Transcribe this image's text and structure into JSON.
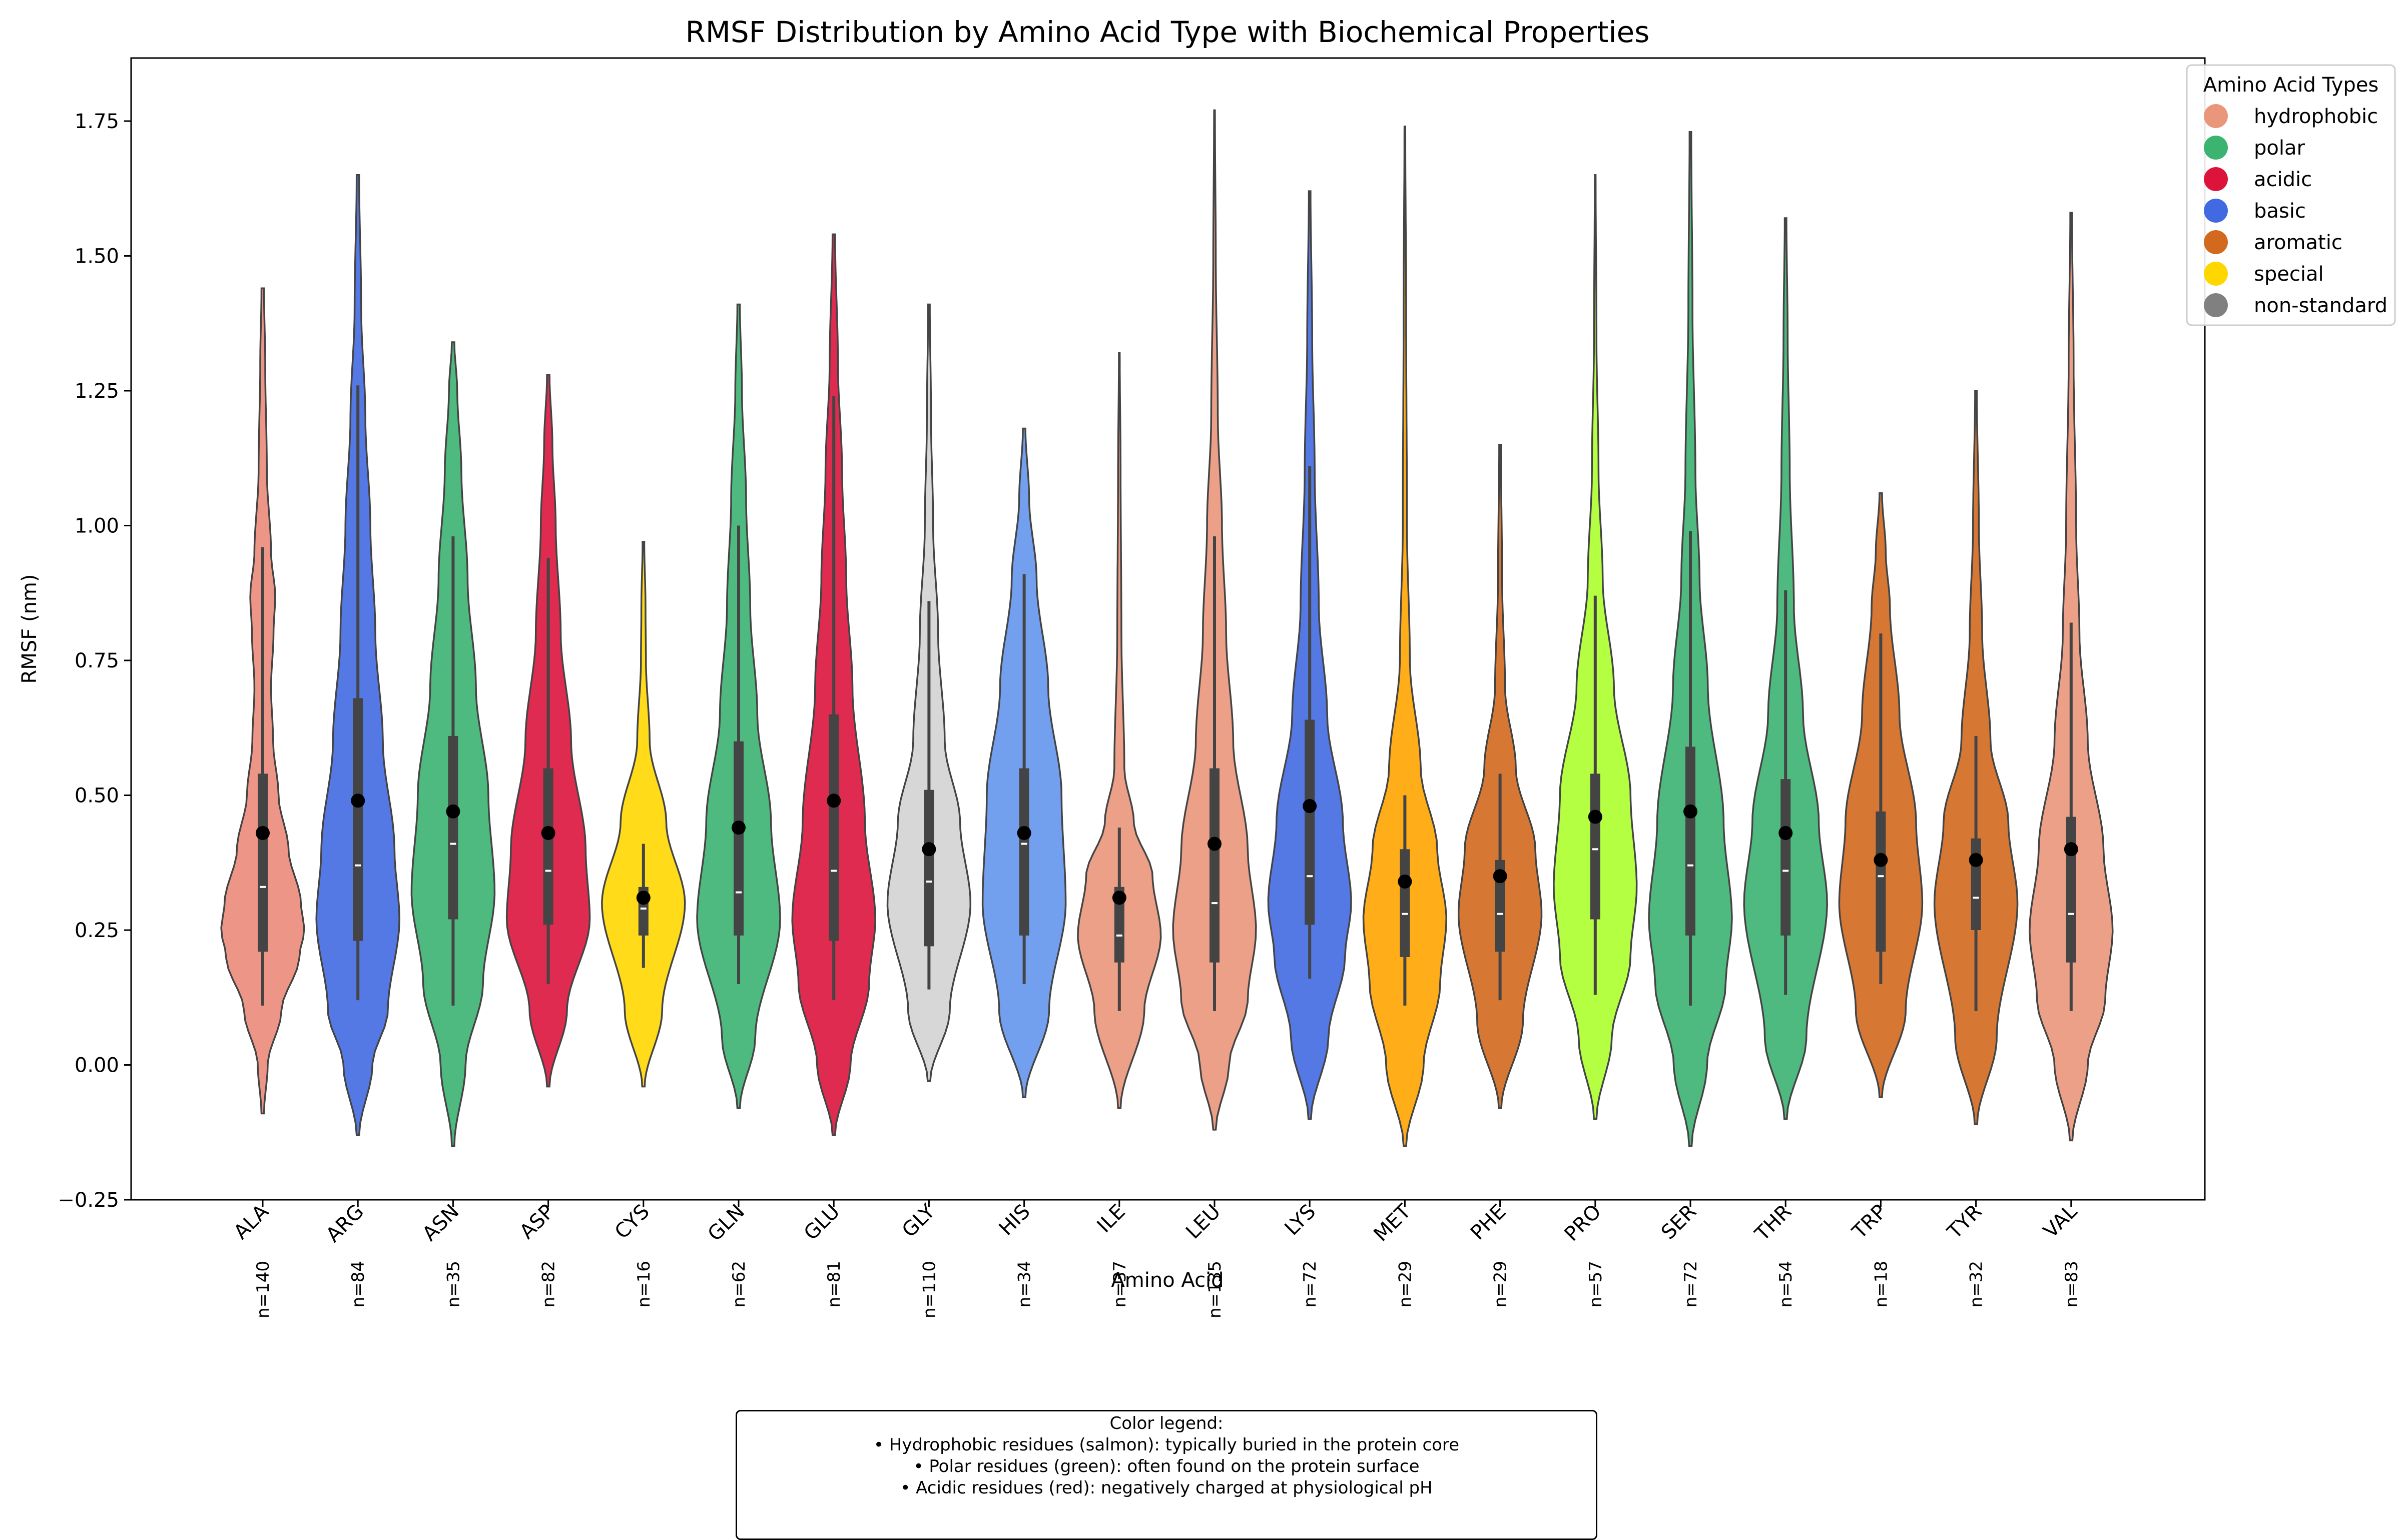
{
  "chart_data": {
    "type": "violin",
    "title": "RMSF Distribution by Amino Acid Type with Biochemical Properties",
    "xlabel": "Amino Acid",
    "ylabel": "RMSF (nm)",
    "ylim": [
      -0.25,
      1.84
    ],
    "yticks": [
      -0.25,
      0.0,
      0.25,
      0.5,
      0.75,
      1.0,
      1.25,
      1.5,
      1.75
    ],
    "ytick_labels": [
      "−0.25",
      "0.00",
      "0.25",
      "0.50",
      "0.75",
      "1.00",
      "1.25",
      "1.50",
      "1.75"
    ],
    "grid": false,
    "legend": {
      "title": "Amino Acid Types",
      "position": "top-right",
      "entries": [
        {
          "label": "hydrophobic",
          "color": "#E9967A"
        },
        {
          "label": "polar",
          "color": "#3CB371"
        },
        {
          "label": "acidic",
          "color": "#DC143C"
        },
        {
          "label": "basic",
          "color": "#4169E1"
        },
        {
          "label": "aromatic",
          "color": "#D2691E"
        },
        {
          "label": "special",
          "color": "#FFD700"
        },
        {
          "label": "non-standard",
          "color": "#808080"
        }
      ]
    },
    "series": [
      {
        "residue": "ALA",
        "count_label": "n=140",
        "color": "#EB8A79",
        "min": -0.09,
        "max": 1.44,
        "q1": 0.21,
        "median": 0.33,
        "q3": 0.54,
        "mean": 0.43,
        "whisker_low": 0.11,
        "whisker_high": 0.96,
        "mode": 0.25,
        "shape": [
          [
            -0.09,
            0.03
          ],
          [
            0.0,
            0.12
          ],
          [
            0.1,
            0.45
          ],
          [
            0.2,
            0.88
          ],
          [
            0.25,
            1.0
          ],
          [
            0.3,
            0.92
          ],
          [
            0.4,
            0.62
          ],
          [
            0.5,
            0.38
          ],
          [
            0.6,
            0.25
          ],
          [
            0.7,
            0.2
          ],
          [
            0.8,
            0.26
          ],
          [
            0.87,
            0.3
          ],
          [
            0.95,
            0.2
          ],
          [
            1.1,
            0.1
          ],
          [
            1.3,
            0.06
          ],
          [
            1.44,
            0.03
          ]
        ]
      },
      {
        "residue": "ARG",
        "count_label": "n=84",
        "color": "#4169E1",
        "min": -0.13,
        "max": 1.65,
        "q1": 0.23,
        "median": 0.37,
        "q3": 0.68,
        "mean": 0.49,
        "whisker_low": 0.12,
        "whisker_high": 1.26,
        "mode": 0.27,
        "shape": [
          [
            -0.13,
            0.03
          ],
          [
            0.0,
            0.35
          ],
          [
            0.1,
            0.72
          ],
          [
            0.27,
            1.0
          ],
          [
            0.4,
            0.88
          ],
          [
            0.6,
            0.6
          ],
          [
            0.8,
            0.42
          ],
          [
            1.0,
            0.3
          ],
          [
            1.2,
            0.18
          ],
          [
            1.4,
            0.08
          ],
          [
            1.65,
            0.03
          ]
        ]
      },
      {
        "residue": "ASN",
        "count_label": "n=35",
        "color": "#3CB371",
        "min": -0.15,
        "max": 1.34,
        "q1": 0.27,
        "median": 0.41,
        "q3": 0.61,
        "mean": 0.47,
        "whisker_low": 0.11,
        "whisker_high": 0.98,
        "mode": 0.32,
        "shape": [
          [
            -0.15,
            0.03
          ],
          [
            0.0,
            0.3
          ],
          [
            0.15,
            0.72
          ],
          [
            0.32,
            1.0
          ],
          [
            0.5,
            0.85
          ],
          [
            0.7,
            0.55
          ],
          [
            0.9,
            0.35
          ],
          [
            1.1,
            0.2
          ],
          [
            1.25,
            0.1
          ],
          [
            1.34,
            0.03
          ]
        ]
      },
      {
        "residue": "ASP",
        "count_label": "n=82",
        "color": "#DC143C",
        "min": -0.04,
        "max": 1.28,
        "q1": 0.26,
        "median": 0.36,
        "q3": 0.55,
        "mean": 0.43,
        "whisker_low": 0.15,
        "whisker_high": 0.94,
        "mode": 0.27,
        "shape": [
          [
            -0.04,
            0.03
          ],
          [
            0.1,
            0.45
          ],
          [
            0.27,
            1.0
          ],
          [
            0.4,
            0.9
          ],
          [
            0.6,
            0.55
          ],
          [
            0.8,
            0.3
          ],
          [
            1.0,
            0.18
          ],
          [
            1.15,
            0.1
          ],
          [
            1.28,
            0.03
          ]
        ]
      },
      {
        "residue": "CYS",
        "count_label": "n=16",
        "color": "#FFD700",
        "min": -0.04,
        "max": 0.97,
        "q1": 0.24,
        "median": 0.29,
        "q3": 0.33,
        "mean": 0.31,
        "whisker_low": 0.18,
        "whisker_high": 0.41,
        "mode": 0.3,
        "shape": [
          [
            -0.04,
            0.03
          ],
          [
            0.1,
            0.45
          ],
          [
            0.3,
            1.0
          ],
          [
            0.45,
            0.55
          ],
          [
            0.6,
            0.15
          ],
          [
            0.75,
            0.06
          ],
          [
            0.85,
            0.05
          ],
          [
            0.97,
            0.02
          ]
        ]
      },
      {
        "residue": "GLN",
        "count_label": "n=62",
        "color": "#3CB371",
        "min": -0.08,
        "max": 1.41,
        "q1": 0.24,
        "median": 0.32,
        "q3": 0.6,
        "mean": 0.44,
        "whisker_low": 0.15,
        "whisker_high": 1.0,
        "mode": 0.27,
        "shape": [
          [
            -0.08,
            0.03
          ],
          [
            0.05,
            0.4
          ],
          [
            0.27,
            1.0
          ],
          [
            0.45,
            0.78
          ],
          [
            0.65,
            0.45
          ],
          [
            0.85,
            0.28
          ],
          [
            1.05,
            0.18
          ],
          [
            1.25,
            0.08
          ],
          [
            1.41,
            0.03
          ]
        ]
      },
      {
        "residue": "GLU",
        "count_label": "n=81",
        "color": "#DC143C",
        "min": -0.13,
        "max": 1.54,
        "q1": 0.23,
        "median": 0.36,
        "q3": 0.65,
        "mean": 0.49,
        "whisker_low": 0.12,
        "whisker_high": 1.24,
        "mode": 0.27,
        "shape": [
          [
            -0.13,
            0.03
          ],
          [
            0.0,
            0.4
          ],
          [
            0.15,
            0.85
          ],
          [
            0.27,
            1.0
          ],
          [
            0.45,
            0.75
          ],
          [
            0.7,
            0.45
          ],
          [
            0.9,
            0.3
          ],
          [
            1.1,
            0.2
          ],
          [
            1.3,
            0.1
          ],
          [
            1.54,
            0.03
          ]
        ]
      },
      {
        "residue": "GLY",
        "count_label": "n=110",
        "color": "#D3D3D3",
        "min": -0.03,
        "max": 1.41,
        "q1": 0.22,
        "median": 0.34,
        "q3": 0.51,
        "mean": 0.4,
        "whisker_low": 0.14,
        "whisker_high": 0.86,
        "mode": 0.3,
        "shape": [
          [
            -0.03,
            0.03
          ],
          [
            0.1,
            0.5
          ],
          [
            0.3,
            1.0
          ],
          [
            0.45,
            0.75
          ],
          [
            0.6,
            0.38
          ],
          [
            0.8,
            0.22
          ],
          [
            1.0,
            0.1
          ],
          [
            1.2,
            0.05
          ],
          [
            1.41,
            0.02
          ]
        ]
      },
      {
        "residue": "HIS",
        "count_label": "n=34",
        "color": "#6495ED",
        "min": -0.06,
        "max": 1.18,
        "q1": 0.24,
        "median": 0.41,
        "q3": 0.55,
        "mean": 0.43,
        "whisker_low": 0.15,
        "whisker_high": 0.91,
        "mode": 0.3,
        "shape": [
          [
            -0.06,
            0.03
          ],
          [
            0.1,
            0.6
          ],
          [
            0.3,
            1.0
          ],
          [
            0.5,
            0.9
          ],
          [
            0.7,
            0.58
          ],
          [
            0.9,
            0.3
          ],
          [
            1.05,
            0.12
          ],
          [
            1.18,
            0.03
          ]
        ]
      },
      {
        "residue": "ILE",
        "count_label": "n=37",
        "color": "#E9967A",
        "min": -0.08,
        "max": 1.32,
        "q1": 0.19,
        "median": 0.24,
        "q3": 0.33,
        "mean": 0.31,
        "whisker_low": 0.1,
        "whisker_high": 0.44,
        "mode": 0.24,
        "shape": [
          [
            -0.08,
            0.03
          ],
          [
            0.1,
            0.6
          ],
          [
            0.24,
            1.0
          ],
          [
            0.35,
            0.8
          ],
          [
            0.45,
            0.35
          ],
          [
            0.55,
            0.12
          ],
          [
            0.8,
            0.05
          ],
          [
            1.1,
            0.03
          ],
          [
            1.32,
            0.01
          ]
        ]
      },
      {
        "residue": "LEU",
        "count_label": "n=135",
        "color": "#E9967A",
        "min": -0.12,
        "max": 1.77,
        "q1": 0.19,
        "median": 0.3,
        "q3": 0.55,
        "mean": 0.41,
        "whisker_low": 0.1,
        "whisker_high": 0.98,
        "mode": 0.25,
        "shape": [
          [
            -0.12,
            0.03
          ],
          [
            0.0,
            0.35
          ],
          [
            0.12,
            0.8
          ],
          [
            0.25,
            1.0
          ],
          [
            0.4,
            0.8
          ],
          [
            0.6,
            0.45
          ],
          [
            0.8,
            0.28
          ],
          [
            1.0,
            0.18
          ],
          [
            1.2,
            0.08
          ],
          [
            1.5,
            0.03
          ],
          [
            1.77,
            0.01
          ]
        ]
      },
      {
        "residue": "LYS",
        "count_label": "n=72",
        "color": "#4169E1",
        "min": -0.1,
        "max": 1.62,
        "q1": 0.26,
        "median": 0.35,
        "q3": 0.64,
        "mean": 0.48,
        "whisker_low": 0.16,
        "whisker_high": 1.11,
        "mode": 0.3,
        "shape": [
          [
            -0.1,
            0.03
          ],
          [
            0.05,
            0.45
          ],
          [
            0.2,
            0.85
          ],
          [
            0.3,
            1.0
          ],
          [
            0.45,
            0.8
          ],
          [
            0.65,
            0.42
          ],
          [
            0.85,
            0.22
          ],
          [
            1.1,
            0.12
          ],
          [
            1.35,
            0.06
          ],
          [
            1.62,
            0.02
          ]
        ]
      },
      {
        "residue": "MET",
        "count_label": "n=29",
        "color": "#FFA500",
        "min": -0.15,
        "max": 1.74,
        "q1": 0.2,
        "median": 0.28,
        "q3": 0.4,
        "mean": 0.34,
        "whisker_low": 0.11,
        "whisker_high": 0.5,
        "mode": 0.27,
        "shape": [
          [
            -0.15,
            0.03
          ],
          [
            0.0,
            0.45
          ],
          [
            0.15,
            0.85
          ],
          [
            0.27,
            1.0
          ],
          [
            0.4,
            0.78
          ],
          [
            0.55,
            0.38
          ],
          [
            0.75,
            0.12
          ],
          [
            1.0,
            0.05
          ],
          [
            1.4,
            0.03
          ],
          [
            1.74,
            0.01
          ]
        ]
      },
      {
        "residue": "PHE",
        "count_label": "n=29",
        "color": "#D2691E",
        "min": -0.08,
        "max": 1.15,
        "q1": 0.21,
        "median": 0.28,
        "q3": 0.38,
        "mean": 0.35,
        "whisker_low": 0.12,
        "whisker_high": 0.54,
        "mode": 0.28,
        "shape": [
          [
            -0.08,
            0.03
          ],
          [
            0.08,
            0.55
          ],
          [
            0.28,
            1.0
          ],
          [
            0.4,
            0.85
          ],
          [
            0.55,
            0.38
          ],
          [
            0.7,
            0.12
          ],
          [
            0.9,
            0.05
          ],
          [
            1.15,
            0.02
          ]
        ]
      },
      {
        "residue": "PRO",
        "count_label": "n=57",
        "color": "#ADFF2F",
        "min": -0.1,
        "max": 1.65,
        "q1": 0.27,
        "median": 0.4,
        "q3": 0.54,
        "mean": 0.46,
        "whisker_low": 0.13,
        "whisker_high": 0.87,
        "mode": 0.33,
        "shape": [
          [
            -0.1,
            0.03
          ],
          [
            0.05,
            0.4
          ],
          [
            0.2,
            0.85
          ],
          [
            0.33,
            1.0
          ],
          [
            0.5,
            0.85
          ],
          [
            0.7,
            0.45
          ],
          [
            0.9,
            0.18
          ],
          [
            1.1,
            0.08
          ],
          [
            1.35,
            0.03
          ],
          [
            1.65,
            0.01
          ]
        ]
      },
      {
        "residue": "SER",
        "count_label": "n=72",
        "color": "#3CB371",
        "min": -0.15,
        "max": 1.73,
        "q1": 0.24,
        "median": 0.37,
        "q3": 0.59,
        "mean": 0.47,
        "whisker_low": 0.11,
        "whisker_high": 0.99,
        "mode": 0.27,
        "shape": [
          [
            -0.15,
            0.03
          ],
          [
            0.0,
            0.4
          ],
          [
            0.15,
            0.85
          ],
          [
            0.27,
            1.0
          ],
          [
            0.45,
            0.8
          ],
          [
            0.7,
            0.42
          ],
          [
            0.9,
            0.22
          ],
          [
            1.1,
            0.12
          ],
          [
            1.4,
            0.05
          ],
          [
            1.73,
            0.02
          ]
        ]
      },
      {
        "residue": "THR",
        "count_label": "n=54",
        "color": "#3CB371",
        "min": -0.1,
        "max": 1.57,
        "q1": 0.24,
        "median": 0.36,
        "q3": 0.53,
        "mean": 0.43,
        "whisker_low": 0.13,
        "whisker_high": 0.88,
        "mode": 0.3,
        "shape": [
          [
            -0.1,
            0.03
          ],
          [
            0.05,
            0.5
          ],
          [
            0.3,
            1.0
          ],
          [
            0.45,
            0.8
          ],
          [
            0.65,
            0.42
          ],
          [
            0.85,
            0.2
          ],
          [
            1.1,
            0.1
          ],
          [
            1.35,
            0.05
          ],
          [
            1.57,
            0.02
          ]
        ]
      },
      {
        "residue": "TRP",
        "count_label": "n=18",
        "color": "#D2691E",
        "min": -0.06,
        "max": 1.06,
        "q1": 0.21,
        "median": 0.35,
        "q3": 0.47,
        "mean": 0.38,
        "whisker_low": 0.15,
        "whisker_high": 0.8,
        "mode": 0.3,
        "shape": [
          [
            -0.06,
            0.03
          ],
          [
            0.1,
            0.6
          ],
          [
            0.3,
            1.0
          ],
          [
            0.45,
            0.85
          ],
          [
            0.65,
            0.45
          ],
          [
            0.85,
            0.22
          ],
          [
            0.95,
            0.12
          ],
          [
            1.06,
            0.03
          ]
        ]
      },
      {
        "residue": "TYR",
        "count_label": "n=32",
        "color": "#D2691E",
        "min": -0.11,
        "max": 1.25,
        "q1": 0.25,
        "median": 0.31,
        "q3": 0.42,
        "mean": 0.38,
        "whisker_low": 0.1,
        "whisker_high": 0.61,
        "mode": 0.3,
        "shape": [
          [
            -0.11,
            0.03
          ],
          [
            0.05,
            0.5
          ],
          [
            0.3,
            1.0
          ],
          [
            0.45,
            0.78
          ],
          [
            0.6,
            0.35
          ],
          [
            0.8,
            0.15
          ],
          [
            1.0,
            0.07
          ],
          [
            1.25,
            0.02
          ]
        ]
      },
      {
        "residue": "VAL",
        "count_label": "n=83",
        "color": "#E9967A",
        "min": -0.14,
        "max": 1.58,
        "q1": 0.19,
        "median": 0.28,
        "q3": 0.46,
        "mean": 0.4,
        "whisker_low": 0.1,
        "whisker_high": 0.82,
        "mode": 0.25,
        "shape": [
          [
            -0.14,
            0.03
          ],
          [
            0.0,
            0.4
          ],
          [
            0.12,
            0.82
          ],
          [
            0.25,
            1.0
          ],
          [
            0.4,
            0.78
          ],
          [
            0.6,
            0.4
          ],
          [
            0.8,
            0.2
          ],
          [
            1.0,
            0.12
          ],
          [
            1.3,
            0.06
          ],
          [
            1.58,
            0.02
          ]
        ]
      }
    ]
  },
  "note": {
    "lines": [
      "Color legend:",
      "• Hydrophobic residues (salmon): typically buried in the protein core",
      "• Polar residues (green): often found on the protein surface",
      "• Acidic residues (red): negatively charged at physiological pH"
    ]
  }
}
